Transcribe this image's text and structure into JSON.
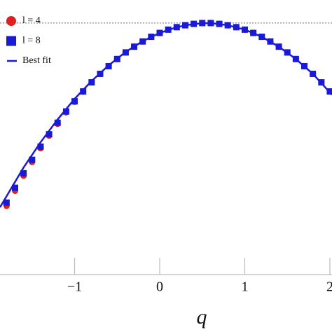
{
  "chart_data": {
    "type": "scatter",
    "x_label": "q",
    "xlim": [
      -1.877,
      2.025
    ],
    "ylim": [
      0,
      1
    ],
    "xticks": [
      {
        "value": -1,
        "label": "−1"
      },
      0,
      1,
      2
    ],
    "hline": 0.916,
    "legend": "top-left",
    "series": [
      {
        "name": "l = 4",
        "color": "#e02020",
        "marker": "circle",
        "x": [
          -1.8,
          -1.7,
          -1.6,
          -1.5,
          -1.4,
          -1.3,
          -1.2,
          -1.1,
          -1.0,
          -0.9,
          -0.8,
          -0.7,
          -0.6,
          -0.5,
          -0.4,
          -0.3,
          -0.2,
          -0.1,
          0,
          0.1,
          0.2,
          0.3,
          0.4,
          0.5,
          0.6,
          0.7,
          0.8,
          0.9,
          1.0,
          1.1,
          1.2,
          1.3,
          1.4,
          1.5,
          1.6,
          1.7,
          1.8,
          1.9,
          2.0
        ],
        "values": [
          0.25,
          0.305,
          0.36,
          0.41,
          0.46,
          0.506,
          0.549,
          0.591,
          0.629,
          0.666,
          0.7,
          0.731,
          0.759,
          0.785,
          0.809,
          0.83,
          0.849,
          0.866,
          0.88,
          0.892,
          0.901,
          0.908,
          0.913,
          0.916,
          0.916,
          0.913,
          0.908,
          0.901,
          0.892,
          0.88,
          0.866,
          0.849,
          0.83,
          0.809,
          0.785,
          0.759,
          0.731,
          0.7,
          0.667
        ]
      },
      {
        "name": "l = 8",
        "color": "#1a1ad6",
        "marker": "square",
        "x": [
          -1.8,
          -1.7,
          -1.6,
          -1.5,
          -1.4,
          -1.3,
          -1.2,
          -1.1,
          -1.0,
          -0.9,
          -0.8,
          -0.7,
          -0.6,
          -0.5,
          -0.4,
          -0.3,
          -0.2,
          -0.1,
          0,
          0.1,
          0.2,
          0.3,
          0.4,
          0.5,
          0.6,
          0.7,
          0.8,
          0.9,
          1.0,
          1.1,
          1.2,
          1.3,
          1.4,
          1.5,
          1.6,
          1.7,
          1.8,
          1.9,
          2.0
        ],
        "values": [
          0.262,
          0.316,
          0.369,
          0.418,
          0.466,
          0.511,
          0.553,
          0.594,
          0.631,
          0.667,
          0.7,
          0.731,
          0.759,
          0.785,
          0.809,
          0.83,
          0.849,
          0.866,
          0.88,
          0.892,
          0.901,
          0.908,
          0.913,
          0.916,
          0.916,
          0.913,
          0.908,
          0.901,
          0.892,
          0.88,
          0.866,
          0.849,
          0.83,
          0.809,
          0.785,
          0.759,
          0.731,
          0.7,
          0.667
        ]
      },
      {
        "name": "Best fit",
        "color": "#1a1ad6",
        "marker": "line",
        "x": [
          -1.877,
          -1.8,
          -1.6,
          -1.4,
          -1.2,
          -1.0,
          -0.8,
          -0.6,
          -0.4,
          -0.2,
          0,
          0.2,
          0.4,
          0.6,
          0.8,
          1.0,
          1.2,
          1.4,
          1.6,
          1.8,
          2.025
        ],
        "values": [
          0.245,
          0.285,
          0.39,
          0.482,
          0.565,
          0.64,
          0.705,
          0.762,
          0.811,
          0.85,
          0.88,
          0.901,
          0.913,
          0.916,
          0.908,
          0.892,
          0.866,
          0.83,
          0.785,
          0.731,
          0.655
        ]
      }
    ]
  }
}
